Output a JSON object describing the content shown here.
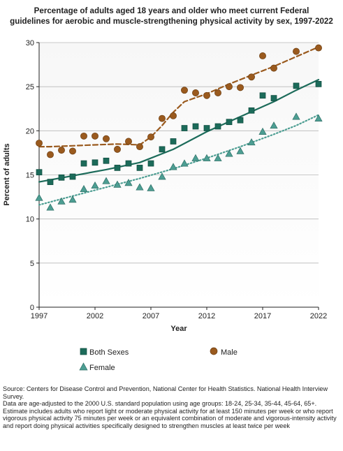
{
  "title_lines": [
    "Percentage of adults aged 18 years and older who meet current Federal",
    "guidelines for aerobic and muscle-strengthening physical activity by sex, 1997-2022"
  ],
  "chart_data": {
    "type": "scatter",
    "title": "Percentage of adults aged 18 years and older who meet current Federal guidelines for aerobic and muscle-strengthening physical activity by sex, 1997-2022",
    "xlabel": "Year",
    "ylabel": "Percent of adults",
    "xlim": [
      1997,
      2022
    ],
    "ylim": [
      0,
      30
    ],
    "x_ticks": [
      1997,
      2002,
      2007,
      2012,
      2017,
      2022
    ],
    "y_ticks": [
      0,
      5,
      10,
      15,
      20,
      25,
      30
    ],
    "grid": "horizontal",
    "legend_position": "bottom",
    "series": [
      {
        "name": "Male",
        "marker": "circle",
        "color": "#9a5a1e",
        "trend_style": "dashed",
        "trend_color": "#9a5a1e",
        "x": [
          1997,
          1998,
          1999,
          2000,
          2001,
          2002,
          2003,
          2004,
          2005,
          2006,
          2007,
          2008,
          2009,
          2010,
          2011,
          2012,
          2013,
          2014,
          2015,
          2016,
          2017,
          2018,
          2020,
          2022
        ],
        "values": [
          18.6,
          17.3,
          17.8,
          17.7,
          19.4,
          19.4,
          19.1,
          17.9,
          18.8,
          18.2,
          19.3,
          21.4,
          21.7,
          24.6,
          24.3,
          24.0,
          24.3,
          25.0,
          24.9,
          26.1,
          28.5,
          27.1,
          29.0,
          29.4
        ],
        "trend": [
          [
            1997,
            18.2
          ],
          [
            1998,
            18.2
          ],
          [
            2000,
            18.3
          ],
          [
            2002,
            18.4
          ],
          [
            2004,
            18.5
          ],
          [
            2006,
            18.4
          ],
          [
            2007,
            19.3
          ],
          [
            2008,
            20.6
          ],
          [
            2009,
            22.1
          ],
          [
            2010,
            23.3
          ],
          [
            2012,
            24.2
          ],
          [
            2014,
            25.3
          ],
          [
            2016,
            26.3
          ],
          [
            2018,
            27.3
          ],
          [
            2020,
            28.4
          ],
          [
            2022,
            29.5
          ]
        ]
      },
      {
        "name": "Both Sexes",
        "marker": "square",
        "color": "#1c6b5a",
        "trend_style": "solid",
        "trend_color": "#1c6b5a",
        "x": [
          1997,
          1998,
          1999,
          2000,
          2001,
          2002,
          2003,
          2004,
          2005,
          2006,
          2007,
          2008,
          2009,
          2010,
          2011,
          2012,
          2013,
          2014,
          2015,
          2016,
          2017,
          2018,
          2020,
          2022
        ],
        "values": [
          15.3,
          14.2,
          14.7,
          14.8,
          16.3,
          16.4,
          16.6,
          15.8,
          16.3,
          15.8,
          16.3,
          17.9,
          18.8,
          20.3,
          20.5,
          20.3,
          20.5,
          21.0,
          21.2,
          22.3,
          24.0,
          23.7,
          25.1,
          25.3
        ],
        "trend": [
          [
            1997,
            14.2
          ],
          [
            2000,
            14.9
          ],
          [
            2003,
            15.6
          ],
          [
            2006,
            16.4
          ],
          [
            2009,
            17.9
          ],
          [
            2012,
            19.9
          ],
          [
            2015,
            21.6
          ],
          [
            2018,
            23.3
          ],
          [
            2020,
            24.6
          ],
          [
            2022,
            25.8
          ]
        ]
      },
      {
        "name": "Female",
        "marker": "triangle",
        "color": "#4d9e93",
        "trend_style": "dotted",
        "trend_color": "#4d9e93",
        "x": [
          1997,
          1998,
          1999,
          2000,
          2001,
          2002,
          2003,
          2004,
          2005,
          2006,
          2007,
          2008,
          2009,
          2010,
          2011,
          2012,
          2013,
          2014,
          2015,
          2016,
          2017,
          2018,
          2020,
          2022
        ],
        "values": [
          12.4,
          11.3,
          12.0,
          12.2,
          13.4,
          13.8,
          14.3,
          13.9,
          14.1,
          13.6,
          13.5,
          14.8,
          15.9,
          16.3,
          16.9,
          16.9,
          16.9,
          17.4,
          17.7,
          18.7,
          19.9,
          20.6,
          21.6,
          21.4
        ],
        "trend": [
          [
            1997,
            11.6
          ],
          [
            2000,
            12.6
          ],
          [
            2003,
            13.6
          ],
          [
            2006,
            14.6
          ],
          [
            2009,
            15.7
          ],
          [
            2012,
            16.9
          ],
          [
            2015,
            18.2
          ],
          [
            2018,
            19.6
          ],
          [
            2020,
            20.6
          ],
          [
            2022,
            21.8
          ]
        ]
      }
    ]
  },
  "legend": {
    "both_sexes": "Both Sexes",
    "male": "Male",
    "female": "Female"
  },
  "footnotes": [
    "Source: Centers for Disease Control and Prevention, National Center for Health Statistics. National Health Interview Survey.",
    "Data are age-adjusted to the 2000 U.S. standard population using age groups: 18-24, 25-34, 35-44, 45-64, 65+.",
    "Estimate includes adults who report light or moderate physical activity for at least 150 minutes per week or who report vigorous physical activity 75 minutes per week or an equivalent combination of moderate and vigorous-intensity activity and report doing physical activities specifically designed to strengthen muscles at least twice per week"
  ]
}
